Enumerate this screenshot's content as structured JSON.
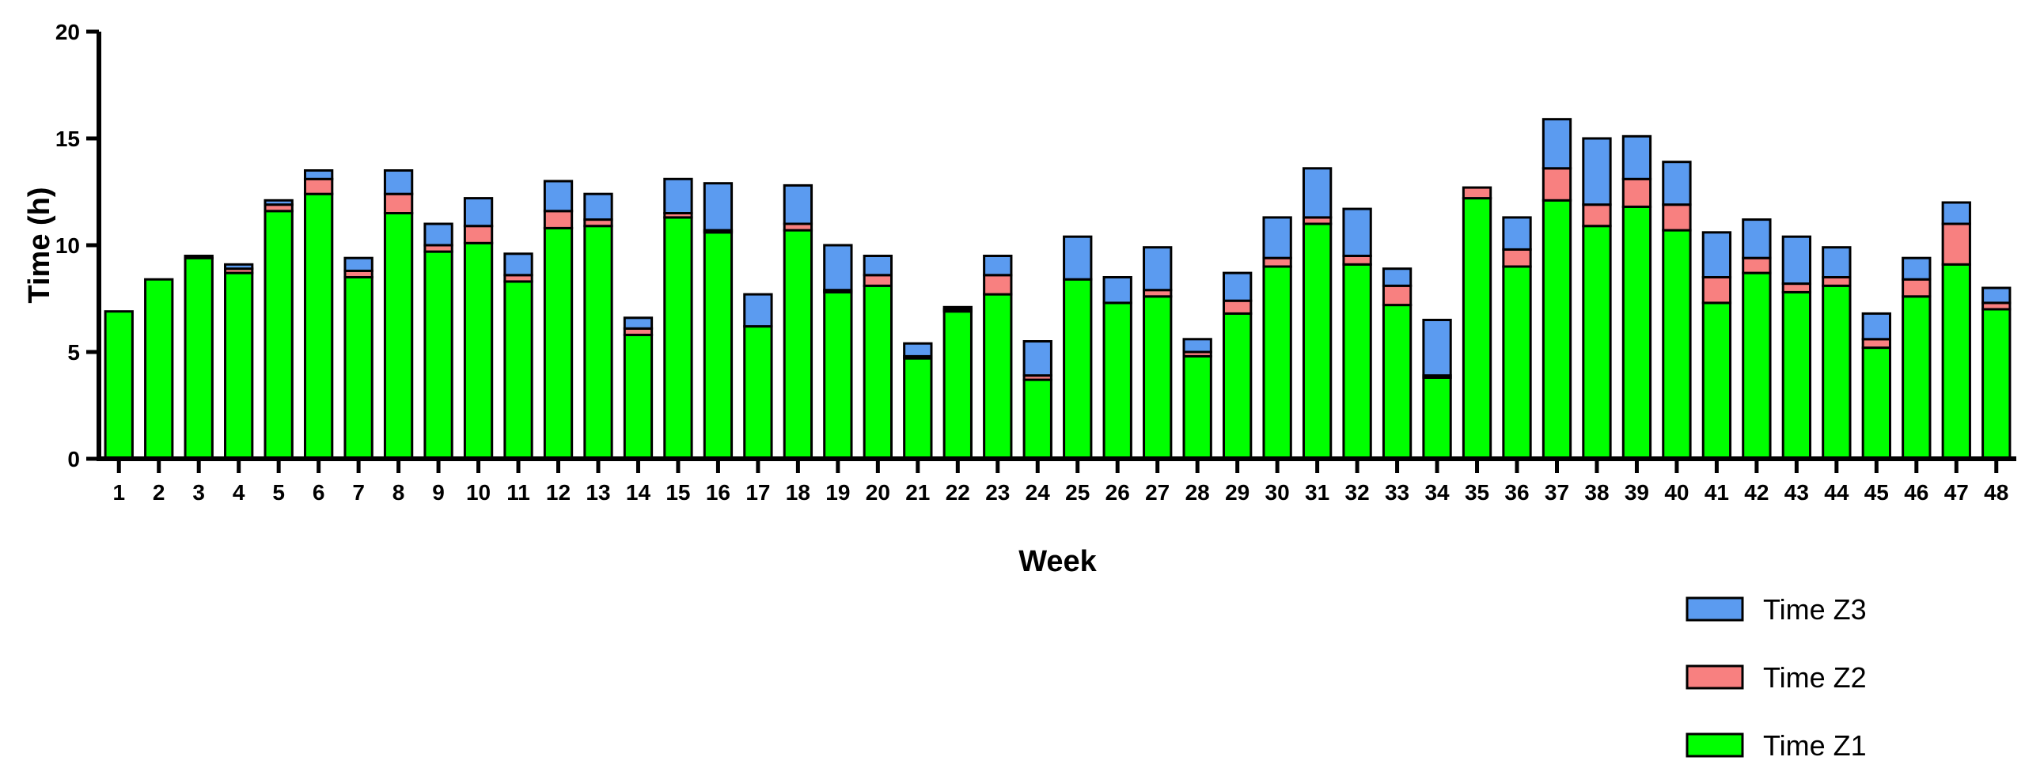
{
  "chart_data": {
    "type": "bar",
    "stacked": true,
    "title": "",
    "xlabel": "Week",
    "ylabel": "Time (h)",
    "ylim": [
      0,
      20
    ],
    "yticks": [
      0,
      5,
      10,
      15,
      20
    ],
    "grid": false,
    "legend_position": "bottom-right",
    "categories": [
      "1",
      "2",
      "3",
      "4",
      "5",
      "6",
      "7",
      "8",
      "9",
      "10",
      "11",
      "12",
      "13",
      "14",
      "15",
      "16",
      "17",
      "18",
      "19",
      "20",
      "21",
      "22",
      "23",
      "24",
      "25",
      "26",
      "27",
      "28",
      "29",
      "30",
      "31",
      "32",
      "33",
      "34",
      "35",
      "36",
      "37",
      "38",
      "39",
      "40",
      "41",
      "42",
      "43",
      "44",
      "45",
      "46",
      "47",
      "48"
    ],
    "series": [
      {
        "name": "Time Z1",
        "color": "#00ff00",
        "values": [
          6.9,
          8.4,
          9.4,
          8.7,
          11.6,
          12.4,
          8.5,
          11.5,
          9.7,
          10.1,
          8.3,
          10.8,
          10.9,
          5.8,
          11.3,
          10.6,
          6.2,
          10.7,
          7.8,
          8.1,
          4.7,
          6.9,
          7.7,
          3.7,
          8.4,
          7.3,
          7.6,
          4.8,
          6.8,
          9.0,
          11.0,
          9.1,
          7.2,
          3.8,
          12.2,
          9.0,
          12.1,
          10.9,
          11.8,
          10.7,
          7.3,
          8.7,
          7.8,
          8.1,
          5.2,
          7.6,
          9.1,
          7.0
        ]
      },
      {
        "name": "Time Z2",
        "color": "#f88080",
        "values": [
          0,
          0,
          0,
          0.2,
          0.3,
          0.7,
          0.3,
          0.9,
          0.3,
          0.8,
          0.3,
          0.8,
          0.3,
          0.3,
          0.2,
          0.1,
          0,
          0.3,
          0.1,
          0.5,
          0.1,
          0.1,
          0.9,
          0.2,
          0,
          0,
          0.3,
          0.2,
          0.6,
          0.4,
          0.3,
          0.4,
          0.9,
          0.1,
          0.5,
          0.8,
          1.5,
          1.0,
          1.3,
          1.2,
          1.2,
          0.7,
          0.4,
          0.4,
          0.4,
          0.8,
          1.9,
          0.3
        ]
      },
      {
        "name": "Time Z3",
        "color": "#5b9bf0",
        "values": [
          0,
          0,
          0.1,
          0.2,
          0.2,
          0.4,
          0.6,
          1.1,
          1.0,
          1.3,
          1.0,
          1.4,
          1.2,
          0.5,
          1.6,
          2.2,
          1.5,
          1.8,
          2.1,
          0.9,
          0.6,
          0.1,
          0.9,
          1.6,
          2.0,
          1.2,
          2.0,
          0.6,
          1.3,
          1.9,
          2.3,
          2.2,
          0.8,
          2.6,
          0,
          1.5,
          2.3,
          3.1,
          2.0,
          2.0,
          2.1,
          1.8,
          2.2,
          1.4,
          1.2,
          1.0,
          1.0,
          0.7
        ]
      }
    ],
    "legend": [
      "Time Z3",
      "Time Z2",
      "Time Z1"
    ]
  }
}
